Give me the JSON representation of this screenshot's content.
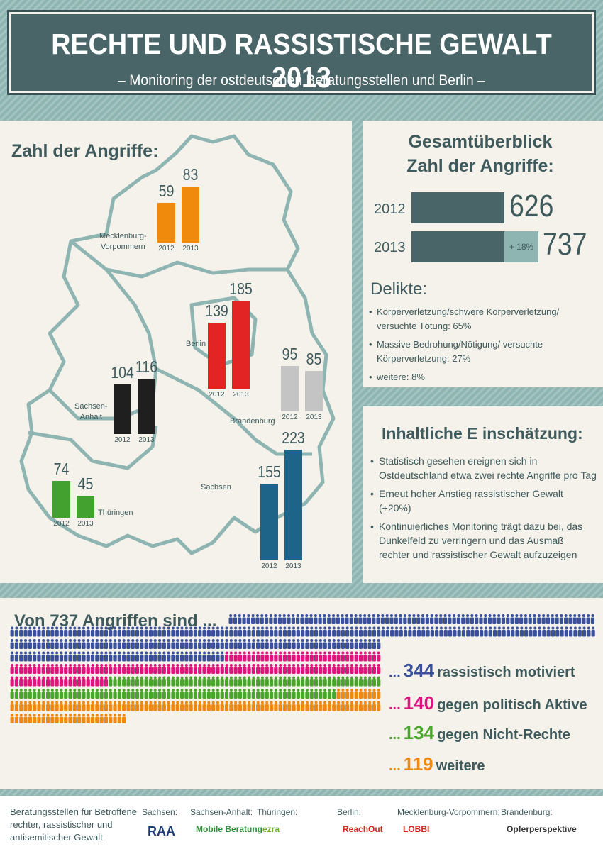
{
  "header": {
    "title": "RECHTE UND RASSISTISCHE GEWALT 2013",
    "subtitle": "– Monitoring der ostdeutschen Beratungsstellen und Berlin –"
  },
  "map": {
    "title": "Zahl der Angriffe:",
    "regions": [
      {
        "name": "Mecklenburg-\nVorpommern",
        "name_l1": "Mecklenburg-",
        "name_l2": "Vorpommern",
        "v2012": 59,
        "v2013": 83,
        "color": "#f08a0c"
      },
      {
        "name_l1": "Berlin",
        "name_l2": "",
        "v2012": 139,
        "v2013": 185,
        "color": "#e32424"
      },
      {
        "name_l1": "Brandenburg",
        "name_l2": "",
        "v2012": 95,
        "v2013": 85,
        "color": "#c4c4c4"
      },
      {
        "name_l1": "Sachsen-",
        "name_l2": "Anhalt",
        "v2012": 104,
        "v2013": 116,
        "color": "#1f1f1f"
      },
      {
        "name_l1": "Thüringen",
        "name_l2": "",
        "v2012": 74,
        "v2013": 45,
        "color": "#43a12f"
      },
      {
        "name_l1": "Sachsen",
        "name_l2": "",
        "v2012": 155,
        "v2013": 223,
        "color": "#1e6488"
      }
    ],
    "year_a": "2012",
    "year_b": "2013"
  },
  "chart_data": [
    {
      "type": "bar",
      "title": "Zahl der Angriffe:",
      "categories": [
        "Mecklenburg-Vorpommern",
        "Berlin",
        "Brandenburg",
        "Sachsen-Anhalt",
        "Thüringen",
        "Sachsen"
      ],
      "series": [
        {
          "name": "2012",
          "values": [
            59,
            139,
            95,
            104,
            74,
            155
          ]
        },
        {
          "name": "2013",
          "values": [
            83,
            185,
            85,
            116,
            45,
            223
          ]
        }
      ]
    },
    {
      "type": "bar",
      "title": "Gesamtüberblick Zahl der Angriffe:",
      "categories": [
        "2012",
        "2013"
      ],
      "values": [
        626,
        737
      ],
      "annotation": "+ 18%"
    },
    {
      "type": "bar",
      "title": "Von 737 Angriffen sind ...",
      "categories": [
        "rassistisch motiviert",
        "gegen politisch Aktive",
        "gegen Nicht-Rechte",
        "weitere"
      ],
      "values": [
        344,
        140,
        134,
        119
      ]
    }
  ],
  "overview": {
    "title_l1": "Gesamtüberblick",
    "title_l2": "Zahl der Angriffe:",
    "rows": [
      {
        "year": "2012",
        "value": "626"
      },
      {
        "year": "2013",
        "value": "737",
        "increase": "+ 18%"
      }
    ]
  },
  "delikte": {
    "title": "Delikte:",
    "items": [
      "Körperverletzung/schwere Körperverletzung/ versuchte Tötung: 65%",
      "Massive Bedrohung/Nötigung/ versuchte Körperverletzung: 27%",
      "weitere: 8%"
    ]
  },
  "assessment": {
    "title": "Inhaltliche E inschätzung:",
    "items": [
      "Statistisch gesehen ereignen sich in Ostdeutschland etwa zwei rechte Angriffe pro Tag",
      "Erneut hoher Anstieg rassistischer Gewalt (+20%)",
      "Kontinuierliches Monitoring trägt dazu bei, das Dunkelfeld zu verringern und das Ausmaß rechter und rassistischer Gewalt aufzuzeigen"
    ]
  },
  "people": {
    "title": "Von 737 Angriffen sind ...",
    "categories": [
      {
        "dots": "...",
        "num": "344",
        "label": "rassistisch motiviert",
        "count": 344,
        "color": "#3a4f9a"
      },
      {
        "dots": "...",
        "num": "140",
        "label": "gegen politisch Aktive",
        "count": 140,
        "color": "#e0147f"
      },
      {
        "dots": "...",
        "num": "134",
        "label": "gegen Nicht-Rechte",
        "count": 134,
        "color": "#4aa52d"
      },
      {
        "dots": "...",
        "num": "119",
        "label": "weitere",
        "count": 119,
        "color": "#ee8a14"
      }
    ]
  },
  "footer": {
    "text": "Beratungsstellen für Betroffene rechter, rassistischer und antisemitischer Gewalt",
    "orgs": [
      {
        "label": "Sachsen:",
        "logo": "RAA"
      },
      {
        "label": "Sachsen-Anhalt:",
        "logo": "Mobile Beratung"
      },
      {
        "label": "Thüringen:",
        "logo": "ezra"
      },
      {
        "label": "Berlin:",
        "logo": "ReachOut"
      },
      {
        "label": "Mecklenburg-Vorpommern:",
        "logo": "LOBBI"
      },
      {
        "label": "Brandenburg:",
        "logo": "Opferperspektive"
      }
    ]
  }
}
